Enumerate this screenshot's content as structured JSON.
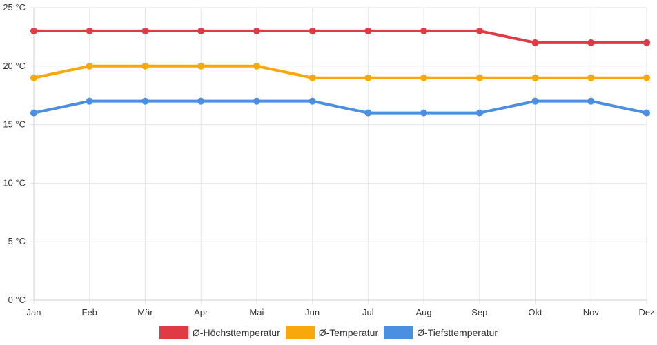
{
  "chart_data": {
    "type": "line",
    "title": "",
    "xlabel": "",
    "ylabel": "",
    "categories": [
      "Jan",
      "Feb",
      "Mär",
      "Apr",
      "Mai",
      "Jun",
      "Jul",
      "Aug",
      "Sep",
      "Okt",
      "Nov",
      "Dez"
    ],
    "ylim": [
      0,
      25
    ],
    "y_ticks": [
      {
        "value": 0,
        "label": "0 °C"
      },
      {
        "value": 5,
        "label": "5 °C"
      },
      {
        "value": 10,
        "label": "10 °C"
      },
      {
        "value": 15,
        "label": "15 °C"
      },
      {
        "value": 20,
        "label": "20 °C"
      },
      {
        "value": 25,
        "label": "25 °C"
      }
    ],
    "grid": true,
    "legend_position": "bottom",
    "series": [
      {
        "name": "Ø-Höchsttemperatur",
        "color": "#e03a45",
        "values": [
          23,
          23,
          23,
          23,
          23,
          23,
          23,
          23,
          23,
          22,
          22,
          22
        ]
      },
      {
        "name": "Ø-Temperatur",
        "color": "#f8a80d",
        "values": [
          19,
          20,
          20,
          20,
          20,
          19,
          19,
          19,
          19,
          19,
          19,
          19
        ]
      },
      {
        "name": "Ø-Tiefsttemperatur",
        "color": "#4a8fe0",
        "values": [
          16,
          17,
          17,
          17,
          17,
          17,
          16,
          16,
          16,
          17,
          17,
          16
        ]
      }
    ]
  }
}
